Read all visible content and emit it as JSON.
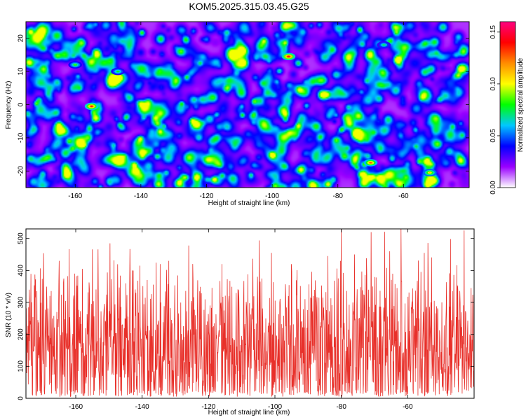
{
  "title": "KOM5.2025.315.03.45.G25",
  "chart_data": [
    {
      "type": "heatmap",
      "title": "KOM5.2025.315.03.45.G25",
      "xlabel": "Height of straight line (km)",
      "ylabel": "Frequency (Hz)",
      "xlim": [
        -175,
        -40
      ],
      "ylim": [
        -25,
        25
      ],
      "xticks": [
        -160,
        -140,
        -120,
        -100,
        -80,
        -60
      ],
      "yticks": [
        -20,
        -10,
        0,
        10,
        20
      ],
      "xtick_labels": [
        "-160",
        "-140",
        "-120",
        "-100",
        "-80",
        "-60"
      ],
      "ytick_labels": [
        "-20",
        "-10",
        "0",
        "10",
        "20"
      ],
      "colorbar": {
        "label": "Normalized spectral amplitude",
        "range": [
          0,
          0.16
        ],
        "ticks": [
          0,
          0.05,
          0.1,
          0.15
        ],
        "tick_labels": [
          "0.00",
          "0.05",
          "0.10",
          "0.15"
        ],
        "colors": [
          "#ffffff",
          "#9a00ff",
          "#0000ff",
          "#00c8ff",
          "#00ff00",
          "#ffff00",
          "#ff8c00",
          "#ff0000",
          "#ff0080"
        ]
      },
      "peaks": [
        {
          "x": -155,
          "y": -0.5,
          "value": 0.14
        },
        {
          "x": -95,
          "y": 14.5,
          "value": 0.145
        },
        {
          "x": -70,
          "y": -17.5,
          "value": 0.13
        },
        {
          "x": -52,
          "y": -20.5,
          "value": 0.11
        },
        {
          "x": -160,
          "y": 12,
          "value": 0.085
        },
        {
          "x": -147,
          "y": 10,
          "value": 0.08
        },
        {
          "x": -66,
          "y": 18,
          "value": 0.075
        }
      ]
    },
    {
      "type": "line",
      "xlabel": "Height of straight line (km)",
      "ylabel": "SNR (10 * v/v)",
      "xlim": [
        -175,
        -40
      ],
      "ylim": [
        0,
        530
      ],
      "xticks": [
        -160,
        -140,
        -120,
        -100,
        -80,
        -60
      ],
      "yticks": [
        0,
        100,
        200,
        300,
        400,
        500
      ],
      "xtick_labels": [
        "-160",
        "-140",
        "-120",
        "-100",
        "-80",
        "-60"
      ],
      "ytick_labels": [
        "0",
        "100",
        "200",
        "300",
        "400",
        "500"
      ],
      "series": [
        {
          "name": "SNR",
          "color": "#e8302a",
          "n_points": 1350,
          "baseline": 150,
          "typical_max": 330,
          "peaks": [
            {
              "x": -174,
              "y": 340
            },
            {
              "x": -165,
              "y": 430
            },
            {
              "x": -158,
              "y": 405
            },
            {
              "x": -143,
              "y": 400
            },
            {
              "x": -132,
              "y": 430
            },
            {
              "x": -126,
              "y": 478
            },
            {
              "x": -116,
              "y": 420
            },
            {
              "x": -101,
              "y": 455
            },
            {
              "x": -95,
              "y": 420
            },
            {
              "x": -84,
              "y": 445
            },
            {
              "x": -80,
              "y": 530
            },
            {
              "x": -76,
              "y": 450
            },
            {
              "x": -71,
              "y": 520
            },
            {
              "x": -62,
              "y": 530
            },
            {
              "x": -55,
              "y": 455
            },
            {
              "x": -43,
              "y": 525
            }
          ]
        }
      ]
    }
  ]
}
